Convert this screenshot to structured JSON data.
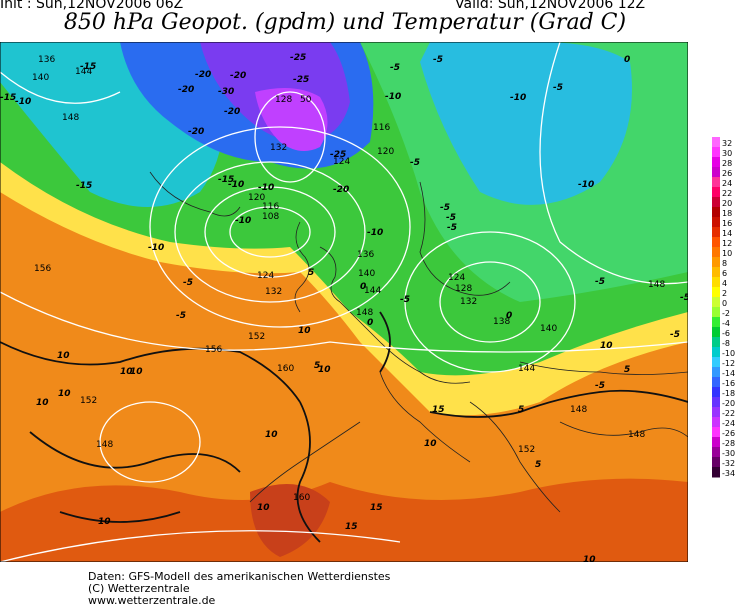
{
  "header": {
    "init": "Init : Sun,12NOV2006 06Z",
    "valid": "Valid: Sun,12NOV2006 12Z"
  },
  "title": "850 hPa Geopot. (gpdm) und Temperatur (Grad C)",
  "geopotential_labels": [
    "136",
    "140",
    "144",
    "148",
    "128",
    "50",
    "132",
    "116",
    "124",
    "120",
    "108",
    "116",
    "120",
    "124",
    "132",
    "156",
    "152",
    "156",
    "160",
    "152",
    "148",
    "160",
    "136",
    "140",
    "144",
    "148",
    "128",
    "124",
    "132",
    "138",
    "140",
    "144",
    "148",
    "152",
    "148",
    "148"
  ],
  "temperature_labels": [
    "-15",
    "-20",
    "-20",
    "-25",
    "-25",
    "-20",
    "-30",
    "-20",
    "-25",
    "-20",
    "-15",
    "-15",
    "-10",
    "-10",
    "-20",
    "-10",
    "-10",
    "-5",
    "-5",
    "-15",
    "-10",
    "-5",
    "-10",
    "-5",
    "-5",
    "-5",
    "-10",
    "-5",
    "-10",
    "-5",
    "-5",
    "-10",
    "-5",
    "-5",
    "-5",
    "0",
    "0",
    "0",
    "0",
    "-5",
    "-5",
    "5",
    "10",
    "10",
    "10",
    "10",
    "10",
    "10",
    "10",
    "10",
    "10",
    "10",
    "10",
    "15",
    "15",
    "15",
    "5",
    "5",
    "5",
    "10",
    "5",
    "10"
  ],
  "legend": {
    "labels": [
      "32",
      "30",
      "28",
      "26",
      "24",
      "22",
      "20",
      "18",
      "16",
      "14",
      "12",
      "10",
      "8",
      "6",
      "4",
      "2",
      "0",
      "-2",
      "-4",
      "-6",
      "-8",
      "-10",
      "-12",
      "-14",
      "-16",
      "-18",
      "-20",
      "-22",
      "-24",
      "-26",
      "-28",
      "-30",
      "-32",
      "-34"
    ],
    "colors": [
      "#ff66ff",
      "#ff33ff",
      "#e600e6",
      "#cc00cc",
      "#ff3399",
      "#ff0066",
      "#cc0033",
      "#b30000",
      "#cc1100",
      "#e62e00",
      "#ff5500",
      "#ff7700",
      "#ff9900",
      "#ffbb00",
      "#ffdd00",
      "#ffff00",
      "#ccff33",
      "#99ff33",
      "#33ee33",
      "#00cc33",
      "#00cc88",
      "#00cccc",
      "#33ccff",
      "#3399ff",
      "#3366ff",
      "#3333ff",
      "#6633ff",
      "#9933ff",
      "#cc33ff",
      "#ff33ff",
      "#cc00cc",
      "#990099",
      "#660066",
      "#330033"
    ]
  },
  "footer": {
    "line1": "Daten: GFS-Modell des amerikanischen Wetterdienstes",
    "line2": "(C) Wetterzentrale",
    "line3": "www.wetterzentrale.de"
  }
}
